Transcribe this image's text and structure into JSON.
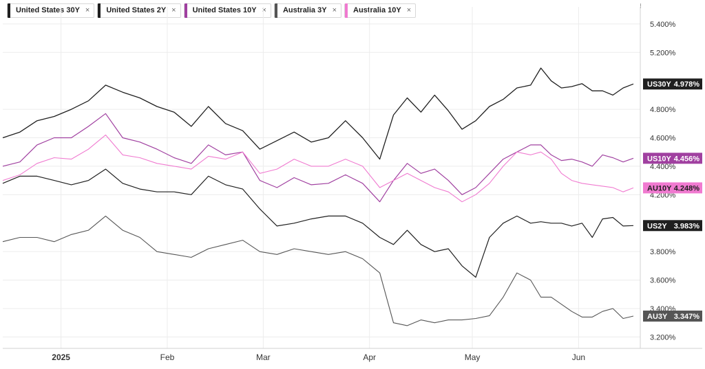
{
  "legend": [
    {
      "label": "United States 30Y",
      "color": "#1f1f1f"
    },
    {
      "label": "United States 2Y",
      "color": "#1f1f1f"
    },
    {
      "label": "United States 10Y",
      "color": "#a040a0"
    },
    {
      "label": "Australia 3Y",
      "color": "#555555"
    },
    {
      "label": "Australia 10Y",
      "color": "#f07ad0"
    }
  ],
  "close_glyph": "×",
  "menu_glyph": "⁝",
  "chart_data": {
    "type": "line",
    "x_ticks": [
      {
        "label": "2025",
        "t": 17,
        "bold": true
      },
      {
        "label": "Feb",
        "t": 48
      },
      {
        "label": "Mar",
        "t": 76
      },
      {
        "label": "Apr",
        "t": 107
      },
      {
        "label": "May",
        "t": 137
      },
      {
        "label": "Jun",
        "t": 168
      }
    ],
    "x_range": [
      0,
      186
    ],
    "y_ticks": [
      "5.400%",
      "5.200%",
      "4.800%",
      "4.600%",
      "4.400%",
      "4.200%",
      "3.800%",
      "3.600%",
      "3.400%",
      "3.200%"
    ],
    "y_tick_values": [
      5.4,
      5.2,
      4.8,
      4.6,
      4.4,
      4.2,
      3.8,
      3.6,
      3.4,
      3.2
    ],
    "ylim": [
      3.12,
      5.52
    ],
    "series": [
      {
        "name": "United States 30Y",
        "tag": "US30Y",
        "last": "4.978%",
        "color": "#1f1f1f",
        "tag_color": "#1f1f1f",
        "tag_text": "#ffffff",
        "width": 1.3,
        "points": [
          [
            0,
            4.6
          ],
          [
            5,
            4.64
          ],
          [
            10,
            4.72
          ],
          [
            15,
            4.75
          ],
          [
            20,
            4.8
          ],
          [
            25,
            4.86
          ],
          [
            30,
            4.97
          ],
          [
            35,
            4.92
          ],
          [
            40,
            4.88
          ],
          [
            45,
            4.82
          ],
          [
            50,
            4.78
          ],
          [
            55,
            4.68
          ],
          [
            60,
            4.82
          ],
          [
            65,
            4.7
          ],
          [
            70,
            4.65
          ],
          [
            75,
            4.52
          ],
          [
            80,
            4.58
          ],
          [
            85,
            4.64
          ],
          [
            90,
            4.57
          ],
          [
            95,
            4.6
          ],
          [
            100,
            4.72
          ],
          [
            105,
            4.6
          ],
          [
            110,
            4.45
          ],
          [
            114,
            4.76
          ],
          [
            118,
            4.88
          ],
          [
            122,
            4.78
          ],
          [
            126,
            4.9
          ],
          [
            130,
            4.79
          ],
          [
            134,
            4.66
          ],
          [
            138,
            4.72
          ],
          [
            142,
            4.82
          ],
          [
            146,
            4.87
          ],
          [
            150,
            4.95
          ],
          [
            154,
            4.97
          ],
          [
            157,
            5.09
          ],
          [
            160,
            5.0
          ],
          [
            163,
            4.95
          ],
          [
            166,
            4.96
          ],
          [
            169,
            4.98
          ],
          [
            172,
            4.93
          ],
          [
            175,
            4.93
          ],
          [
            178,
            4.9
          ],
          [
            181,
            4.95
          ],
          [
            184,
            4.978
          ]
        ]
      },
      {
        "name": "United States 10Y",
        "tag": "US10Y",
        "last": "4.456%",
        "color": "#a040a0",
        "tag_color": "#a040a0",
        "tag_text": "#ffffff",
        "width": 1.2,
        "points": [
          [
            0,
            4.4
          ],
          [
            5,
            4.43
          ],
          [
            10,
            4.55
          ],
          [
            15,
            4.6
          ],
          [
            20,
            4.6
          ],
          [
            25,
            4.68
          ],
          [
            30,
            4.77
          ],
          [
            35,
            4.6
          ],
          [
            40,
            4.57
          ],
          [
            45,
            4.52
          ],
          [
            50,
            4.46
          ],
          [
            55,
            4.42
          ],
          [
            60,
            4.55
          ],
          [
            65,
            4.48
          ],
          [
            70,
            4.5
          ],
          [
            75,
            4.3
          ],
          [
            80,
            4.25
          ],
          [
            85,
            4.32
          ],
          [
            90,
            4.27
          ],
          [
            95,
            4.28
          ],
          [
            100,
            4.34
          ],
          [
            105,
            4.28
          ],
          [
            110,
            4.15
          ],
          [
            114,
            4.3
          ],
          [
            118,
            4.42
          ],
          [
            122,
            4.35
          ],
          [
            126,
            4.38
          ],
          [
            130,
            4.3
          ],
          [
            134,
            4.2
          ],
          [
            138,
            4.25
          ],
          [
            142,
            4.35
          ],
          [
            146,
            4.45
          ],
          [
            150,
            4.5
          ],
          [
            154,
            4.55
          ],
          [
            157,
            4.55
          ],
          [
            160,
            4.48
          ],
          [
            163,
            4.44
          ],
          [
            166,
            4.45
          ],
          [
            169,
            4.43
          ],
          [
            172,
            4.4
          ],
          [
            175,
            4.48
          ],
          [
            178,
            4.46
          ],
          [
            181,
            4.43
          ],
          [
            184,
            4.456
          ]
        ]
      },
      {
        "name": "Australia 10Y",
        "tag": "AU10Y",
        "last": "4.248%",
        "color": "#f07ad0",
        "tag_color": "#f07ad0",
        "tag_text": "#1f1f1f",
        "width": 1.1,
        "points": [
          [
            0,
            4.3
          ],
          [
            5,
            4.34
          ],
          [
            10,
            4.42
          ],
          [
            15,
            4.46
          ],
          [
            20,
            4.45
          ],
          [
            25,
            4.52
          ],
          [
            30,
            4.62
          ],
          [
            35,
            4.48
          ],
          [
            40,
            4.46
          ],
          [
            45,
            4.42
          ],
          [
            50,
            4.4
          ],
          [
            55,
            4.38
          ],
          [
            60,
            4.47
          ],
          [
            65,
            4.45
          ],
          [
            70,
            4.5
          ],
          [
            75,
            4.35
          ],
          [
            80,
            4.38
          ],
          [
            85,
            4.45
          ],
          [
            90,
            4.4
          ],
          [
            95,
            4.4
          ],
          [
            100,
            4.45
          ],
          [
            105,
            4.4
          ],
          [
            110,
            4.25
          ],
          [
            114,
            4.3
          ],
          [
            118,
            4.35
          ],
          [
            122,
            4.3
          ],
          [
            126,
            4.25
          ],
          [
            130,
            4.22
          ],
          [
            134,
            4.15
          ],
          [
            138,
            4.2
          ],
          [
            142,
            4.28
          ],
          [
            146,
            4.4
          ],
          [
            150,
            4.5
          ],
          [
            154,
            4.48
          ],
          [
            157,
            4.5
          ],
          [
            160,
            4.45
          ],
          [
            163,
            4.35
          ],
          [
            166,
            4.3
          ],
          [
            169,
            4.28
          ],
          [
            172,
            4.27
          ],
          [
            175,
            4.26
          ],
          [
            178,
            4.25
          ],
          [
            181,
            4.22
          ],
          [
            184,
            4.248
          ]
        ]
      },
      {
        "name": "United States 2Y",
        "tag": "US2Y",
        "last": "3.983%",
        "color": "#1f1f1f",
        "tag_color": "#1f1f1f",
        "tag_text": "#ffffff",
        "width": 1.2,
        "points": [
          [
            0,
            4.28
          ],
          [
            5,
            4.33
          ],
          [
            10,
            4.33
          ],
          [
            15,
            4.3
          ],
          [
            20,
            4.27
          ],
          [
            25,
            4.3
          ],
          [
            30,
            4.38
          ],
          [
            35,
            4.28
          ],
          [
            40,
            4.24
          ],
          [
            45,
            4.22
          ],
          [
            50,
            4.22
          ],
          [
            55,
            4.2
          ],
          [
            60,
            4.33
          ],
          [
            65,
            4.27
          ],
          [
            70,
            4.24
          ],
          [
            75,
            4.1
          ],
          [
            80,
            3.98
          ],
          [
            85,
            4.0
          ],
          [
            90,
            4.03
          ],
          [
            95,
            4.05
          ],
          [
            100,
            4.05
          ],
          [
            105,
            4.0
          ],
          [
            110,
            3.9
          ],
          [
            114,
            3.85
          ],
          [
            118,
            3.95
          ],
          [
            122,
            3.85
          ],
          [
            126,
            3.8
          ],
          [
            130,
            3.82
          ],
          [
            134,
            3.7
          ],
          [
            138,
            3.62
          ],
          [
            142,
            3.9
          ],
          [
            146,
            4.0
          ],
          [
            150,
            4.05
          ],
          [
            154,
            4.0
          ],
          [
            157,
            4.01
          ],
          [
            160,
            4.0
          ],
          [
            163,
            4.0
          ],
          [
            166,
            3.98
          ],
          [
            169,
            4.0
          ],
          [
            172,
            3.9
          ],
          [
            175,
            4.03
          ],
          [
            178,
            4.04
          ],
          [
            181,
            3.98
          ],
          [
            184,
            3.983
          ]
        ]
      },
      {
        "name": "Australia 3Y",
        "tag": "AU3Y",
        "last": "3.347%",
        "color": "#555555",
        "tag_color": "#555555",
        "tag_text": "#ffffff",
        "width": 1.1,
        "points": [
          [
            0,
            3.87
          ],
          [
            5,
            3.9
          ],
          [
            10,
            3.9
          ],
          [
            15,
            3.87
          ],
          [
            20,
            3.92
          ],
          [
            25,
            3.95
          ],
          [
            30,
            4.05
          ],
          [
            35,
            3.95
          ],
          [
            40,
            3.9
          ],
          [
            45,
            3.8
          ],
          [
            50,
            3.78
          ],
          [
            55,
            3.76
          ],
          [
            60,
            3.82
          ],
          [
            65,
            3.85
          ],
          [
            70,
            3.88
          ],
          [
            75,
            3.8
          ],
          [
            80,
            3.78
          ],
          [
            85,
            3.82
          ],
          [
            90,
            3.8
          ],
          [
            95,
            3.78
          ],
          [
            100,
            3.8
          ],
          [
            105,
            3.75
          ],
          [
            110,
            3.65
          ],
          [
            114,
            3.3
          ],
          [
            118,
            3.28
          ],
          [
            122,
            3.32
          ],
          [
            126,
            3.3
          ],
          [
            130,
            3.32
          ],
          [
            134,
            3.32
          ],
          [
            138,
            3.33
          ],
          [
            142,
            3.35
          ],
          [
            146,
            3.48
          ],
          [
            150,
            3.65
          ],
          [
            154,
            3.6
          ],
          [
            157,
            3.48
          ],
          [
            160,
            3.48
          ],
          [
            163,
            3.43
          ],
          [
            166,
            3.38
          ],
          [
            169,
            3.34
          ],
          [
            172,
            3.34
          ],
          [
            175,
            3.38
          ],
          [
            178,
            3.4
          ],
          [
            181,
            3.33
          ],
          [
            184,
            3.347
          ]
        ]
      }
    ]
  }
}
